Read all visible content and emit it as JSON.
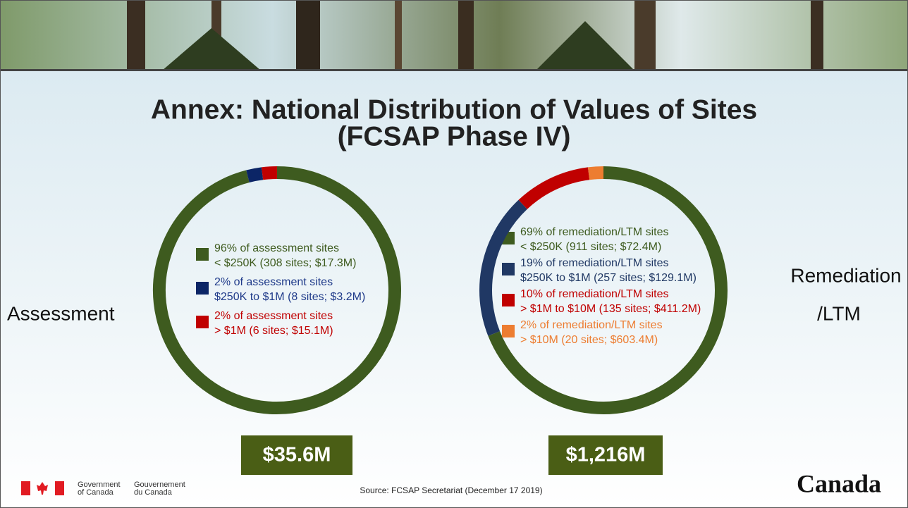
{
  "title_lines": [
    "Annex: National Distribution of Values of Sites",
    "(FCSAP Phase IV)"
  ],
  "chart_data": [
    {
      "type": "donut",
      "label": [
        "Assessment"
      ],
      "total": "$35.6M",
      "categories": [
        "96% of assessment sites",
        "2% of assessment sites",
        "2% of assessment sites"
      ],
      "details": [
        "< $250K (308 sites; $17.3M)",
        "$250K to $1M (8 sites; $3.2M)",
        "> $1M (6 sites; $15.1M)"
      ],
      "values": [
        96,
        2,
        2
      ],
      "colors": [
        "#3e5b1f",
        "#0b2566",
        "#c00000"
      ],
      "text_colors": [
        "#3e5b1f",
        "#1f3a8a",
        "#c00000"
      ]
    },
    {
      "type": "donut",
      "label": [
        "Remediation",
        "/LTM"
      ],
      "total": "$1,216M",
      "categories": [
        "69% of remediation/LTM sites",
        "19% of remediation/LTM sites",
        "10% of remediation/LTM sites",
        "2% of remediation/LTM sites"
      ],
      "details": [
        "< $250K (911 sites; $72.4M)",
        "$250K to $1M (257 sites; $129.1M)",
        "> $1M to $10M (135 sites; $411.2M)",
        "> $10M (20 sites; $603.4M)"
      ],
      "values": [
        69,
        19,
        10,
        2
      ],
      "colors": [
        "#3e5b1f",
        "#203864",
        "#c00000",
        "#ed7d31"
      ],
      "text_colors": [
        "#3e5b1f",
        "#203864",
        "#c00000",
        "#ed7d31"
      ]
    }
  ],
  "source": "Source: FCSAP Secretariat (December 17 2019)",
  "footer": {
    "gov_en": [
      "Government",
      "of Canada"
    ],
    "gov_fr": [
      "Gouvernement",
      "du Canada"
    ],
    "wordmark": "Canada"
  }
}
